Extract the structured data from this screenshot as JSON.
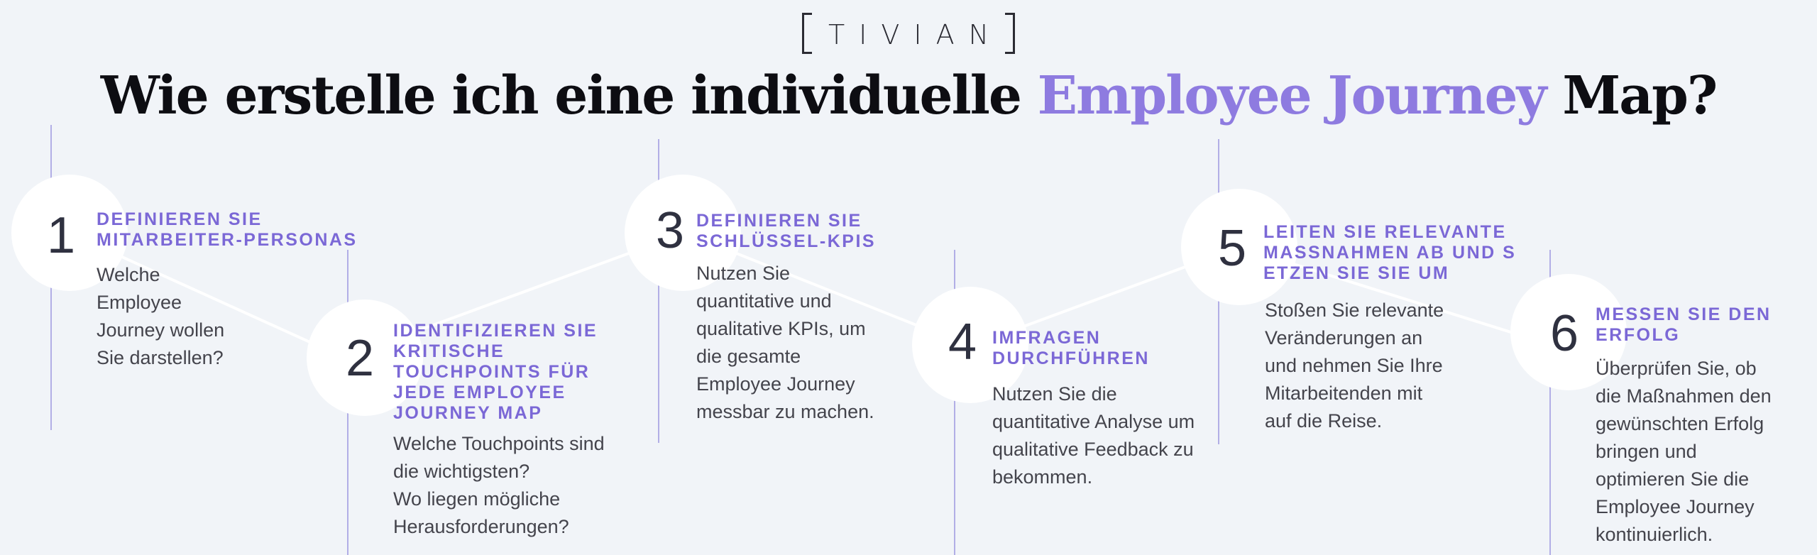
{
  "brand": {
    "logo_text": "TIVIAN"
  },
  "title": {
    "part1": "Wie erstelle ich eine individuelle ",
    "accent": "Employee Journey",
    "part2": " Map?"
  },
  "colors": {
    "background": "#f1f4f8",
    "accent": "#8e7be0",
    "heading": "#7b68d6",
    "line": "#b2aee6",
    "number": "#2f3140"
  },
  "steps": [
    {
      "number": "1",
      "heading": "DEFINIEREN SIE\nMITARBEITER-PERSONAS",
      "body": "Welche\nEmployee\nJourney wollen\nSie darstellen?"
    },
    {
      "number": "2",
      "heading": "IDENTIFIZIEREN SIE\nKRITISCHE\nTOUCHPOINTS FÜR\nJEDE EMPLOYEE\nJOURNEY MAP",
      "body": "Welche Touchpoints sind\ndie wichtigsten?\nWo liegen mögliche\nHerausforderungen?"
    },
    {
      "number": "3",
      "heading": "DEFINIEREN SIE\nSCHLÜSSEL-KPIS",
      "body": "Nutzen Sie\nquantitative und\nqualitative KPIs, um\ndie gesamte\nEmployee Journey\nmessbar zu machen."
    },
    {
      "number": "4",
      "heading": "IMFRAGEN\nDURCHFÜHREN",
      "body": "Nutzen Sie die\nquantitative Analyse um\nqualitative Feedback zu\nbekommen."
    },
    {
      "number": "5",
      "heading": "LEITEN SIE RELEVANTE\nMASSNAHMEN AB UND S\nETZEN SIE SIE UM",
      "body": "Stoßen Sie relevante\nVeränderungen an\nund nehmen Sie Ihre\nMitarbeitenden mit\nauf die Reise."
    },
    {
      "number": "6",
      "heading": "MESSEN SIE DEN\nERFOLG",
      "body": "Überprüfen Sie, ob\ndie Maßnahmen den\ngewünschten Erfolg\nbringen und\noptimieren Sie die\nEmployee Journey\nkontinuierlich."
    }
  ]
}
